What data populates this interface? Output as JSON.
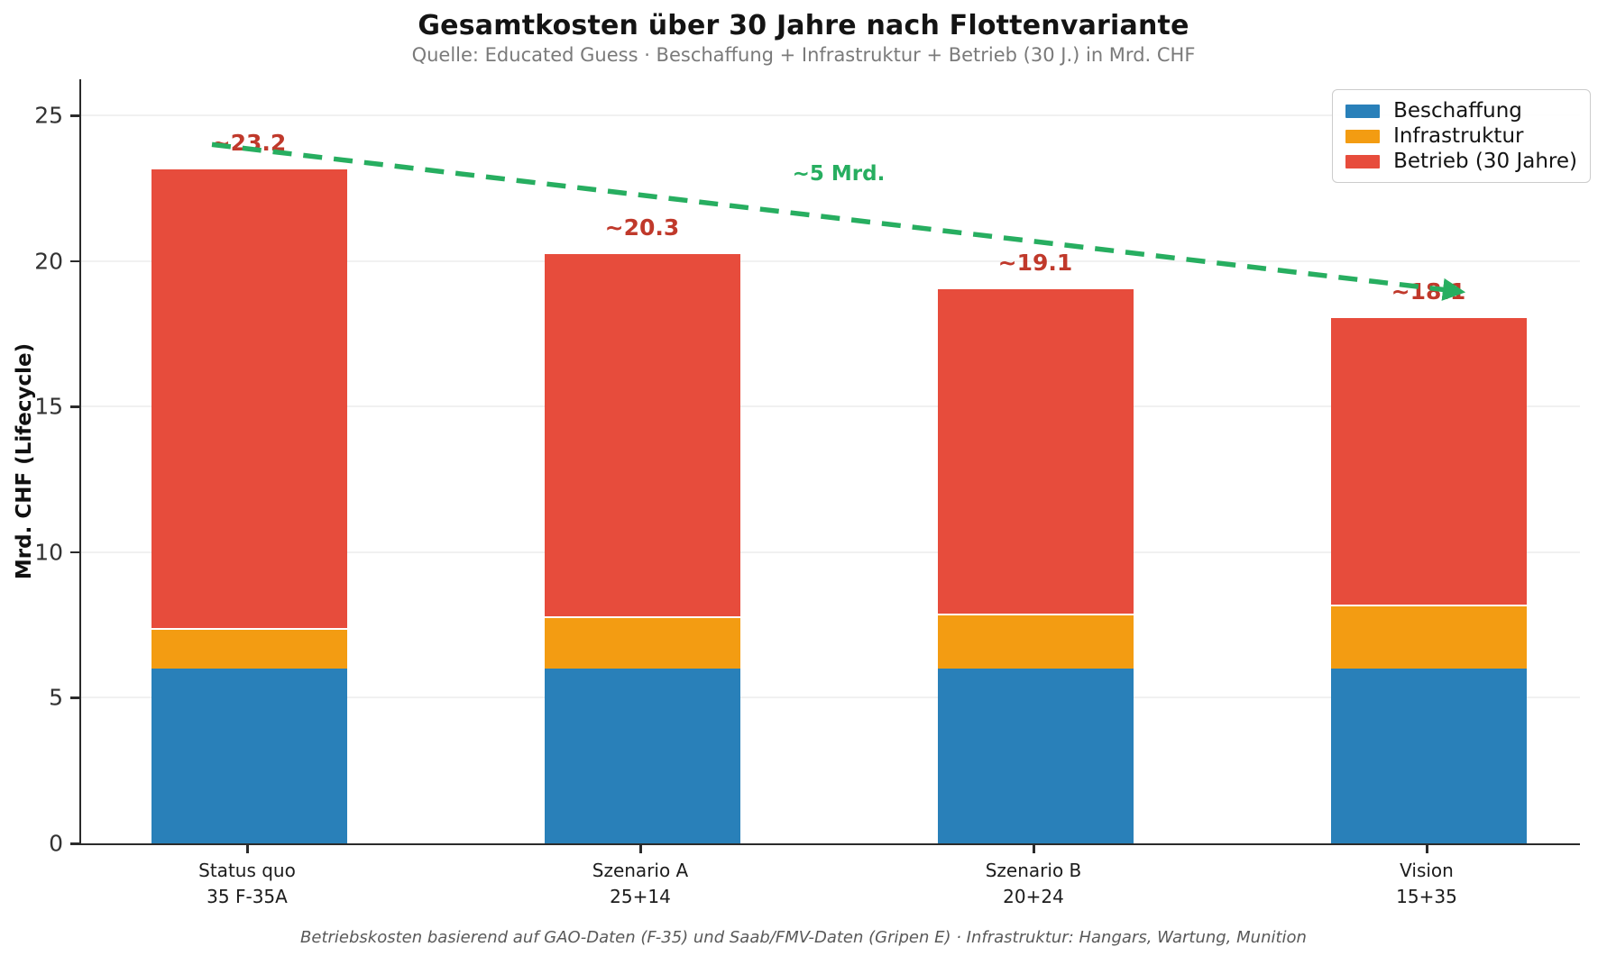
{
  "title": "Gesamtkosten über 30 Jahre nach Flottenvariante",
  "subtitle": "Quelle: Educated Guess · Beschaffung + Infrastruktur + Betrieb (30 J.) in Mrd. CHF",
  "footnote": "Betriebskosten basierend auf GAO-Daten (F-35) und Saab/FMV-Daten (Gripen E) · Infrastruktur: Hangars, Wartung, Munition",
  "colors": {
    "beschaffung": "#2980b9",
    "infrastruktur": "#f39c12",
    "betrieb": "#e74c3c",
    "trend_green": "#27ae60",
    "total_label_red": "#c0392b",
    "grid": "#f1f1f1",
    "axis": "#2b2b2b",
    "subtitle_gray": "#7a7a7a",
    "footnote_gray": "#595959"
  },
  "chart_data": {
    "type": "bar",
    "stacked": true,
    "title": "Gesamtkosten über 30 Jahre nach Flottenvariante",
    "subtitle": "Quelle: Educated Guess · Beschaffung + Infrastruktur + Betrieb (30 J.) in Mrd. CHF",
    "xlabel": "",
    "ylabel": "Mrd. CHF (Lifecycle)",
    "ylim": [
      0,
      26.2
    ],
    "yticks": [
      0,
      5,
      10,
      15,
      20,
      25
    ],
    "grid": true,
    "legend_position": "upper right",
    "categories": [
      {
        "line1": "Status quo",
        "line2": "35 F-35A"
      },
      {
        "line1": "Szenario A",
        "line2": "25+14"
      },
      {
        "line1": "Szenario B",
        "line2": "20+24"
      },
      {
        "line1": "Vision",
        "line2": "15+35"
      }
    ],
    "series": [
      {
        "name": "Beschaffung",
        "color": "#2980b9",
        "values": [
          6.0,
          6.0,
          6.0,
          6.0
        ]
      },
      {
        "name": "Infrastruktur",
        "color": "#f39c12",
        "values": [
          1.4,
          1.8,
          1.9,
          2.2
        ]
      },
      {
        "name": "Betrieb (30 Jahre)",
        "color": "#e74c3c",
        "values": [
          15.8,
          12.5,
          11.2,
          9.9
        ]
      }
    ],
    "totals": [
      23.2,
      20.3,
      19.1,
      18.1
    ],
    "total_labels": [
      "~23.2",
      "~20.3",
      "~19.1",
      "~18.1"
    ],
    "trend": {
      "label": "~5 Mrd.",
      "color": "#27ae60",
      "from": {
        "x": -0.094,
        "y": 24.0
      },
      "to": {
        "x": 3.08,
        "y": 18.95
      },
      "label_pos": {
        "x": 1.5,
        "y": 23.0
      },
      "style": "dashed-arrow"
    }
  }
}
